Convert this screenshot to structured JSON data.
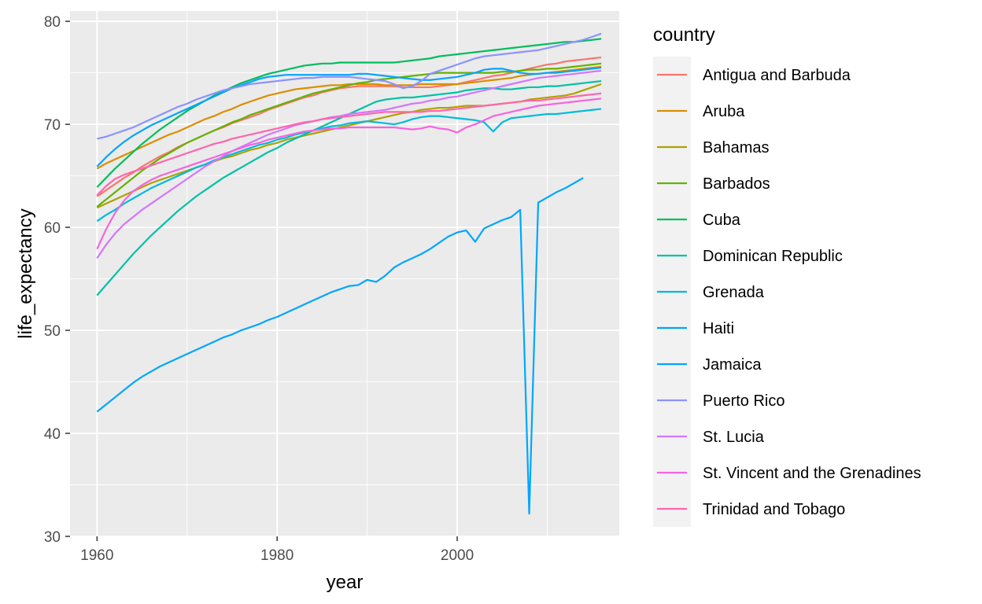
{
  "chart_data": {
    "type": "line",
    "xlabel": "year",
    "ylabel": "life_expectancy",
    "xlim": [
      1957,
      2018
    ],
    "ylim": [
      30,
      81
    ],
    "x_ticks": [
      1960,
      1980,
      2000
    ],
    "x_minor_ticks": [
      1970,
      1990,
      2010
    ],
    "y_ticks": [
      30,
      40,
      50,
      60,
      70,
      80
    ],
    "y_minor_ticks": [
      35,
      45,
      55,
      65,
      75
    ],
    "grid": true,
    "legend": {
      "title": "country",
      "placement": "right"
    },
    "x": [
      1960,
      1961,
      1962,
      1963,
      1964,
      1965,
      1966,
      1967,
      1968,
      1969,
      1970,
      1971,
      1972,
      1973,
      1974,
      1975,
      1976,
      1977,
      1978,
      1979,
      1980,
      1981,
      1982,
      1983,
      1984,
      1985,
      1986,
      1987,
      1988,
      1989,
      1990,
      1991,
      1992,
      1993,
      1994,
      1995,
      1996,
      1997,
      1998,
      1999,
      2000,
      2001,
      2002,
      2003,
      2004,
      2005,
      2006,
      2007,
      2008,
      2009,
      2010,
      2011,
      2012,
      2013,
      2014,
      2015,
      2016
    ],
    "series": [
      {
        "name": "Antigua and Barbuda",
        "color": "#F8766D",
        "values": [
          63.0,
          63.6,
          64.2,
          64.8,
          65.3,
          65.9,
          66.4,
          66.9,
          67.3,
          67.8,
          68.2,
          68.6,
          69.0,
          69.4,
          69.7,
          70.1,
          70.4,
          70.7,
          71.0,
          71.4,
          71.7,
          72.0,
          72.3,
          72.6,
          72.8,
          73.1,
          73.3,
          73.5,
          73.6,
          73.7,
          73.7,
          73.7,
          73.7,
          73.7,
          73.6,
          73.6,
          73.6,
          73.6,
          73.7,
          73.8,
          73.9,
          74.1,
          74.3,
          74.5,
          74.7,
          74.8,
          75.0,
          75.2,
          75.4,
          75.6,
          75.8,
          75.9,
          76.1,
          76.2,
          76.3,
          76.4,
          76.5
        ]
      },
      {
        "name": "Aruba",
        "color": "#DB8E00",
        "values": [
          65.7,
          66.2,
          66.6,
          67.0,
          67.4,
          67.8,
          68.2,
          68.6,
          69.0,
          69.3,
          69.7,
          70.1,
          70.5,
          70.8,
          71.2,
          71.5,
          71.9,
          72.2,
          72.5,
          72.8,
          73.0,
          73.2,
          73.4,
          73.5,
          73.6,
          73.7,
          73.8,
          73.8,
          73.9,
          73.9,
          73.9,
          73.9,
          73.8,
          73.8,
          73.8,
          73.8,
          73.9,
          73.9,
          73.9,
          73.9,
          73.9,
          74.0,
          74.1,
          74.2,
          74.3,
          74.4,
          74.5,
          74.7,
          74.8,
          74.9,
          75.0,
          75.1,
          75.2,
          75.3,
          75.4,
          75.5,
          75.6
        ]
      },
      {
        "name": "Bahamas",
        "color": "#AEA200",
        "values": [
          61.9,
          62.3,
          62.7,
          63.1,
          63.5,
          63.9,
          64.3,
          64.6,
          64.9,
          65.2,
          65.5,
          65.8,
          66.1,
          66.4,
          66.7,
          66.9,
          67.2,
          67.5,
          67.7,
          68.0,
          68.2,
          68.5,
          68.7,
          68.9,
          69.1,
          69.3,
          69.5,
          69.7,
          69.9,
          70.1,
          70.3,
          70.5,
          70.7,
          70.9,
          71.1,
          71.2,
          71.4,
          71.5,
          71.6,
          71.6,
          71.7,
          71.8,
          71.8,
          71.8,
          71.9,
          72.0,
          72.1,
          72.2,
          72.4,
          72.5,
          72.6,
          72.7,
          72.8,
          73.0,
          73.3,
          73.6,
          73.9
        ]
      },
      {
        "name": "Barbados",
        "color": "#64B200",
        "values": [
          62.0,
          62.7,
          63.4,
          64.1,
          64.8,
          65.5,
          66.1,
          66.7,
          67.2,
          67.7,
          68.2,
          68.6,
          69.0,
          69.4,
          69.8,
          70.2,
          70.5,
          70.9,
          71.2,
          71.5,
          71.8,
          72.1,
          72.4,
          72.7,
          73.0,
          73.2,
          73.4,
          73.6,
          73.8,
          74.0,
          74.1,
          74.3,
          74.4,
          74.5,
          74.6,
          74.7,
          74.8,
          74.9,
          75.0,
          75.0,
          75.0,
          75.0,
          75.0,
          75.0,
          75.0,
          75.1,
          75.1,
          75.2,
          75.3,
          75.3,
          75.4,
          75.4,
          75.5,
          75.6,
          75.7,
          75.8,
          75.9
        ]
      },
      {
        "name": "Cuba",
        "color": "#00BD5C",
        "values": [
          63.9,
          64.8,
          65.7,
          66.5,
          67.3,
          68.1,
          68.8,
          69.5,
          70.1,
          70.7,
          71.3,
          71.8,
          72.3,
          72.8,
          73.2,
          73.6,
          74.0,
          74.3,
          74.6,
          74.9,
          75.1,
          75.3,
          75.5,
          75.7,
          75.8,
          75.9,
          75.9,
          76.0,
          76.0,
          76.0,
          76.0,
          76.0,
          76.0,
          76.0,
          76.1,
          76.2,
          76.3,
          76.4,
          76.6,
          76.7,
          76.8,
          76.9,
          77.0,
          77.1,
          77.2,
          77.3,
          77.4,
          77.5,
          77.6,
          77.7,
          77.8,
          77.9,
          78.0,
          78.0,
          78.1,
          78.2,
          78.3
        ]
      },
      {
        "name": "Dominican Republic",
        "color": "#00C1A7",
        "values": [
          53.4,
          54.4,
          55.4,
          56.4,
          57.4,
          58.3,
          59.2,
          60.0,
          60.8,
          61.6,
          62.3,
          63.0,
          63.6,
          64.2,
          64.8,
          65.3,
          65.8,
          66.3,
          66.8,
          67.3,
          67.7,
          68.2,
          68.6,
          69.0,
          69.4,
          69.8,
          70.2,
          70.6,
          71.0,
          71.4,
          71.8,
          72.2,
          72.4,
          72.5,
          72.6,
          72.6,
          72.7,
          72.8,
          72.9,
          73.0,
          73.1,
          73.3,
          73.4,
          73.5,
          73.5,
          73.4,
          73.4,
          73.5,
          73.6,
          73.6,
          73.7,
          73.7,
          73.8,
          73.9,
          74.0,
          74.1,
          74.2
        ]
      },
      {
        "name": "Grenada",
        "color": "#00BADE",
        "values": [
          60.6,
          61.2,
          61.7,
          62.3,
          62.8,
          63.3,
          63.8,
          64.2,
          64.6,
          65.0,
          65.4,
          65.8,
          66.1,
          66.5,
          66.8,
          67.1,
          67.4,
          67.7,
          68.0,
          68.2,
          68.5,
          68.7,
          69.0,
          69.2,
          69.4,
          69.6,
          69.8,
          69.9,
          70.1,
          70.2,
          70.3,
          70.2,
          70.1,
          70.0,
          70.2,
          70.5,
          70.7,
          70.8,
          70.8,
          70.7,
          70.6,
          70.5,
          70.4,
          70.2,
          69.3,
          70.2,
          70.6,
          70.7,
          70.8,
          70.9,
          71.0,
          71.0,
          71.1,
          71.2,
          71.3,
          71.4,
          71.5
        ]
      },
      {
        "name": "Haiti",
        "color": "#00A6FF",
        "values": [
          42.1,
          42.8,
          43.5,
          44.2,
          44.9,
          45.5,
          46.0,
          46.5,
          46.9,
          47.3,
          47.7,
          48.1,
          48.5,
          48.9,
          49.3,
          49.6,
          50.0,
          50.3,
          50.6,
          51.0,
          51.3,
          51.7,
          52.1,
          52.5,
          52.9,
          53.3,
          53.7,
          54.0,
          54.3,
          54.4,
          54.9,
          54.7,
          55.3,
          56.1,
          56.6,
          57.0,
          57.4,
          57.9,
          58.5,
          59.1,
          59.5,
          59.7,
          58.6,
          59.9,
          60.3,
          60.7,
          61.0,
          61.7,
          32.2,
          62.4,
          62.9,
          63.4,
          63.8,
          64.3,
          64.8,
          null,
          null
        ]
      },
      {
        "name": "Jamaica",
        "color": "#06A4FF",
        "values": [
          65.9,
          66.8,
          67.6,
          68.3,
          68.9,
          69.4,
          69.9,
          70.3,
          70.7,
          71.1,
          71.5,
          71.9,
          72.3,
          72.7,
          73.1,
          73.5,
          73.8,
          74.1,
          74.4,
          74.6,
          74.7,
          74.8,
          74.8,
          74.8,
          74.8,
          74.8,
          74.8,
          74.8,
          74.8,
          74.9,
          74.9,
          74.8,
          74.7,
          74.6,
          74.5,
          74.4,
          74.3,
          74.3,
          74.4,
          74.5,
          74.6,
          74.8,
          75.0,
          75.3,
          75.4,
          75.4,
          75.2,
          75.0,
          74.9,
          74.9,
          75.0,
          75.0,
          75.1,
          75.2,
          75.3,
          75.4,
          75.5
        ]
      },
      {
        "name": "Puerto Rico",
        "color": "#8B93FF",
        "values": [
          68.6,
          68.8,
          69.1,
          69.4,
          69.7,
          70.1,
          70.5,
          70.9,
          71.3,
          71.7,
          72.0,
          72.4,
          72.7,
          73.0,
          73.3,
          73.5,
          73.7,
          73.9,
          74.0,
          74.1,
          74.2,
          74.3,
          74.4,
          74.5,
          74.5,
          74.6,
          74.6,
          74.6,
          74.6,
          74.5,
          74.4,
          74.3,
          74.2,
          73.9,
          73.5,
          73.7,
          74.2,
          74.9,
          75.2,
          75.5,
          75.8,
          76.1,
          76.4,
          76.6,
          76.7,
          76.8,
          76.9,
          77.0,
          77.1,
          77.2,
          77.4,
          77.6,
          77.8,
          78.0,
          78.2,
          78.5,
          78.8
        ]
      },
      {
        "name": "St. Lucia",
        "color": "#D376FF",
        "values": [
          57.0,
          58.3,
          59.4,
          60.3,
          61.0,
          61.7,
          62.3,
          62.9,
          63.5,
          64.1,
          64.7,
          65.3,
          65.9,
          66.4,
          66.9,
          67.4,
          67.8,
          68.2,
          68.6,
          69.0,
          69.3,
          69.6,
          69.9,
          70.1,
          70.3,
          70.5,
          70.7,
          70.8,
          71.0,
          71.1,
          71.2,
          71.3,
          71.4,
          71.6,
          71.8,
          72.0,
          72.1,
          72.3,
          72.4,
          72.6,
          72.7,
          72.9,
          73.1,
          73.3,
          73.5,
          73.7,
          73.9,
          74.1,
          74.3,
          74.5,
          74.6,
          74.7,
          74.8,
          74.9,
          75.0,
          75.1,
          75.2
        ]
      },
      {
        "name": "St. Vincent and the Grenadines",
        "color": "#F763E0",
        "values": [
          57.9,
          59.8,
          61.4,
          62.6,
          63.5,
          64.1,
          64.6,
          65.0,
          65.3,
          65.6,
          65.9,
          66.2,
          66.5,
          66.8,
          67.1,
          67.4,
          67.7,
          68.0,
          68.2,
          68.5,
          68.7,
          68.9,
          69.1,
          69.3,
          69.4,
          69.5,
          69.6,
          69.6,
          69.7,
          69.7,
          69.7,
          69.7,
          69.7,
          69.7,
          69.6,
          69.5,
          69.6,
          69.8,
          69.6,
          69.5,
          69.2,
          69.7,
          70.0,
          70.4,
          70.8,
          71.0,
          71.2,
          71.4,
          71.6,
          71.8,
          71.9,
          72.0,
          72.1,
          72.2,
          72.3,
          72.4,
          72.5
        ]
      },
      {
        "name": "Trinidad and Tobago",
        "color": "#FF65AC",
        "values": [
          63.1,
          64.0,
          64.7,
          65.1,
          65.4,
          65.7,
          66.0,
          66.3,
          66.6,
          66.9,
          67.2,
          67.5,
          67.8,
          68.1,
          68.3,
          68.6,
          68.8,
          69.0,
          69.2,
          69.4,
          69.6,
          69.8,
          70.0,
          70.2,
          70.3,
          70.5,
          70.6,
          70.7,
          70.8,
          70.9,
          71.0,
          71.1,
          71.2,
          71.2,
          71.2,
          71.2,
          71.2,
          71.3,
          71.3,
          71.4,
          71.5,
          71.6,
          71.7,
          71.8,
          71.9,
          72.0,
          72.1,
          72.2,
          72.3,
          72.3,
          72.4,
          72.5,
          72.6,
          72.7,
          72.8,
          72.9,
          73.0
        ]
      }
    ]
  }
}
